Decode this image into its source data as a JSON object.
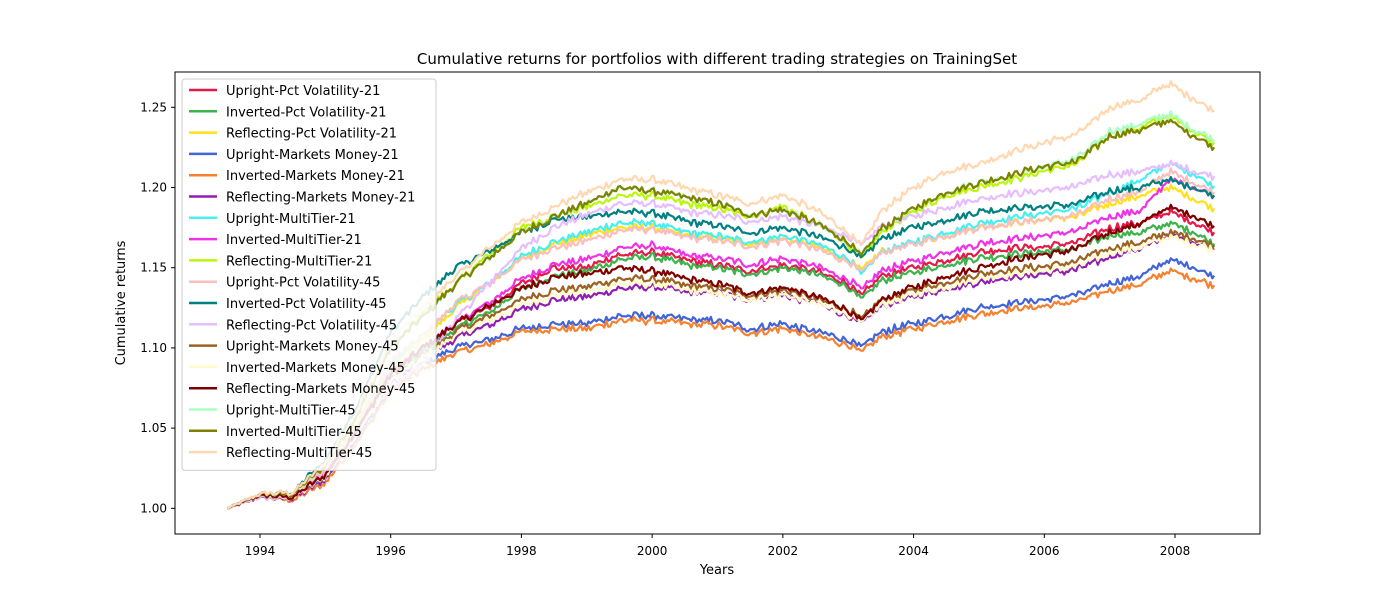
{
  "chart_data": {
    "type": "line",
    "title": "Cumulative returns for portfolios with different trading strategies on TrainingSet",
    "xlabel": "Years",
    "ylabel": "Cumulative returns",
    "xlim": [
      1992.7,
      2009.3
    ],
    "ylim": [
      0.984,
      1.272
    ],
    "xticks": [
      1994,
      1996,
      1998,
      2000,
      2002,
      2004,
      2006,
      2008
    ],
    "xtick_labels": [
      "1994",
      "1996",
      "1998",
      "2000",
      "2002",
      "2004",
      "2006",
      "2008"
    ],
    "yticks": [
      1.0,
      1.05,
      1.1,
      1.15,
      1.2,
      1.25
    ],
    "ytick_labels": [
      "1.00",
      "1.05",
      "1.10",
      "1.15",
      "1.20",
      "1.25"
    ],
    "grid": false,
    "legend_position": "upper-left",
    "x": [
      1993.5,
      1994.0,
      1994.5,
      1995.0,
      1995.5,
      1996.0,
      1996.5,
      1997.0,
      1997.5,
      1998.0,
      1998.5,
      1999.0,
      1999.5,
      2000.0,
      2000.5,
      2001.0,
      2001.5,
      2002.0,
      2002.5,
      2003.0,
      2003.2,
      2003.5,
      2004.0,
      2004.5,
      2005.0,
      2005.5,
      2006.0,
      2006.5,
      2007.0,
      2007.5,
      2007.9,
      2008.3,
      2008.6
    ],
    "series": [
      {
        "name": "Upright-Pct Volatility-21",
        "color": "#e6194b",
        "values": [
          1.0,
          1.008,
          1.008,
          1.022,
          1.05,
          1.085,
          1.1,
          1.115,
          1.125,
          1.14,
          1.15,
          1.15,
          1.158,
          1.16,
          1.155,
          1.152,
          1.148,
          1.152,
          1.148,
          1.14,
          1.132,
          1.145,
          1.15,
          1.155,
          1.16,
          1.162,
          1.163,
          1.166,
          1.175,
          1.178,
          1.185,
          1.178,
          1.172
        ]
      },
      {
        "name": "Inverted-Pct Volatility-21",
        "color": "#3cb44b",
        "values": [
          1.0,
          1.008,
          1.008,
          1.022,
          1.05,
          1.083,
          1.097,
          1.112,
          1.122,
          1.137,
          1.145,
          1.148,
          1.155,
          1.157,
          1.152,
          1.15,
          1.146,
          1.15,
          1.146,
          1.138,
          1.13,
          1.142,
          1.147,
          1.152,
          1.156,
          1.158,
          1.16,
          1.162,
          1.17,
          1.172,
          1.178,
          1.172,
          1.165
        ]
      },
      {
        "name": "Reflecting-Pct Volatility-21",
        "color": "#ffe119",
        "values": [
          1.0,
          1.008,
          1.008,
          1.023,
          1.052,
          1.088,
          1.105,
          1.125,
          1.14,
          1.155,
          1.165,
          1.17,
          1.175,
          1.175,
          1.17,
          1.168,
          1.165,
          1.168,
          1.163,
          1.155,
          1.148,
          1.16,
          1.165,
          1.17,
          1.175,
          1.178,
          1.18,
          1.182,
          1.19,
          1.195,
          1.2,
          1.193,
          1.187
        ]
      },
      {
        "name": "Upright-Markets Money-21",
        "color": "#4363d8",
        "values": [
          1.0,
          1.007,
          1.005,
          1.018,
          1.045,
          1.075,
          1.09,
          1.1,
          1.105,
          1.112,
          1.115,
          1.115,
          1.12,
          1.12,
          1.118,
          1.117,
          1.112,
          1.115,
          1.11,
          1.105,
          1.1,
          1.11,
          1.115,
          1.12,
          1.125,
          1.128,
          1.13,
          1.133,
          1.14,
          1.145,
          1.155,
          1.15,
          1.145
        ]
      },
      {
        "name": "Inverted-Markets Money-21",
        "color": "#f58231",
        "values": [
          1.0,
          1.007,
          1.005,
          1.016,
          1.042,
          1.073,
          1.087,
          1.097,
          1.102,
          1.11,
          1.112,
          1.112,
          1.117,
          1.117,
          1.115,
          1.114,
          1.109,
          1.112,
          1.107,
          1.102,
          1.097,
          1.107,
          1.112,
          1.117,
          1.121,
          1.124,
          1.126,
          1.129,
          1.136,
          1.14,
          1.148,
          1.143,
          1.139
        ]
      },
      {
        "name": "Reflecting-Markets Money-21",
        "color": "#911eb4",
        "values": [
          1.0,
          1.008,
          1.006,
          1.019,
          1.047,
          1.078,
          1.094,
          1.106,
          1.114,
          1.124,
          1.13,
          1.132,
          1.137,
          1.138,
          1.135,
          1.134,
          1.13,
          1.133,
          1.128,
          1.12,
          1.115,
          1.126,
          1.132,
          1.137,
          1.141,
          1.144,
          1.146,
          1.149,
          1.157,
          1.162,
          1.17,
          1.166,
          1.162
        ]
      },
      {
        "name": "Upright-MultiTier-21",
        "color": "#46f0f0",
        "values": [
          1.0,
          1.008,
          1.008,
          1.024,
          1.054,
          1.09,
          1.108,
          1.127,
          1.14,
          1.157,
          1.166,
          1.172,
          1.178,
          1.178,
          1.172,
          1.17,
          1.166,
          1.17,
          1.165,
          1.156,
          1.145,
          1.16,
          1.166,
          1.172,
          1.178,
          1.181,
          1.184,
          1.187,
          1.197,
          1.205,
          1.215,
          1.208,
          1.201
        ]
      },
      {
        "name": "Inverted-MultiTier-21",
        "color": "#f032e6",
        "values": [
          1.0,
          1.008,
          1.008,
          1.022,
          1.05,
          1.084,
          1.1,
          1.116,
          1.128,
          1.143,
          1.152,
          1.155,
          1.162,
          1.164,
          1.158,
          1.156,
          1.152,
          1.156,
          1.151,
          1.143,
          1.136,
          1.148,
          1.154,
          1.16,
          1.165,
          1.168,
          1.17,
          1.173,
          1.182,
          1.186,
          1.205,
          1.2,
          1.195
        ]
      },
      {
        "name": "Reflecting-MultiTier-21",
        "color": "#bcf60c",
        "values": [
          1.0,
          1.008,
          1.009,
          1.026,
          1.058,
          1.1,
          1.122,
          1.14,
          1.158,
          1.175,
          1.182,
          1.188,
          1.195,
          1.195,
          1.19,
          1.187,
          1.182,
          1.188,
          1.178,
          1.165,
          1.155,
          1.172,
          1.185,
          1.195,
          1.2,
          1.205,
          1.21,
          1.215,
          1.232,
          1.238,
          1.245,
          1.235,
          1.228
        ]
      },
      {
        "name": "Upright-Pct Volatility-45",
        "color": "#fabebe",
        "values": [
          1.0,
          1.008,
          1.008,
          1.024,
          1.054,
          1.092,
          1.108,
          1.128,
          1.14,
          1.155,
          1.162,
          1.167,
          1.173,
          1.174,
          1.169,
          1.167,
          1.163,
          1.167,
          1.162,
          1.154,
          1.147,
          1.159,
          1.165,
          1.17,
          1.175,
          1.178,
          1.18,
          1.183,
          1.193,
          1.198,
          1.21,
          1.203,
          1.197
        ]
      },
      {
        "name": "Inverted-Pct Volatility-45",
        "color": "#008080",
        "values": [
          1.0,
          1.009,
          1.01,
          1.03,
          1.065,
          1.11,
          1.132,
          1.15,
          1.16,
          1.172,
          1.18,
          1.182,
          1.185,
          1.184,
          1.179,
          1.176,
          1.172,
          1.175,
          1.17,
          1.162,
          1.155,
          1.168,
          1.175,
          1.18,
          1.185,
          1.187,
          1.188,
          1.19,
          1.198,
          1.2,
          1.205,
          1.2,
          1.195
        ]
      },
      {
        "name": "Reflecting-Pct Volatility-45",
        "color": "#e6beff",
        "values": [
          1.0,
          1.007,
          1.006,
          1.02,
          1.05,
          1.075,
          1.09,
          1.118,
          1.14,
          1.162,
          1.175,
          1.183,
          1.19,
          1.19,
          1.185,
          1.183,
          1.179,
          1.182,
          1.177,
          1.17,
          1.163,
          1.176,
          1.182,
          1.188,
          1.193,
          1.196,
          1.198,
          1.201,
          1.208,
          1.21,
          1.215,
          1.21,
          1.207
        ]
      },
      {
        "name": "Upright-Markets Money-45",
        "color": "#9a6324",
        "values": [
          1.0,
          1.008,
          1.007,
          1.02,
          1.048,
          1.08,
          1.095,
          1.11,
          1.12,
          1.13,
          1.136,
          1.138,
          1.143,
          1.143,
          1.139,
          1.137,
          1.133,
          1.136,
          1.131,
          1.124,
          1.118,
          1.13,
          1.136,
          1.141,
          1.146,
          1.149,
          1.151,
          1.154,
          1.162,
          1.166,
          1.172,
          1.168,
          1.164
        ]
      },
      {
        "name": "Inverted-Markets Money-45",
        "color": "#fffac8",
        "values": [
          1.0,
          1.008,
          1.007,
          1.02,
          1.047,
          1.079,
          1.094,
          1.108,
          1.117,
          1.127,
          1.133,
          1.135,
          1.14,
          1.14,
          1.136,
          1.134,
          1.13,
          1.133,
          1.128,
          1.121,
          1.115,
          1.127,
          1.133,
          1.138,
          1.143,
          1.146,
          1.148,
          1.151,
          1.159,
          1.163,
          1.169,
          1.165,
          1.161
        ]
      },
      {
        "name": "Reflecting-Markets Money-45",
        "color": "#800000",
        "values": [
          1.0,
          1.008,
          1.007,
          1.021,
          1.05,
          1.083,
          1.1,
          1.115,
          1.126,
          1.137,
          1.144,
          1.146,
          1.15,
          1.148,
          1.143,
          1.14,
          1.134,
          1.138,
          1.132,
          1.124,
          1.116,
          1.13,
          1.138,
          1.145,
          1.15,
          1.155,
          1.158,
          1.162,
          1.172,
          1.178,
          1.188,
          1.182,
          1.176
        ]
      },
      {
        "name": "Upright-MultiTier-45",
        "color": "#aaffc3",
        "values": [
          1.0,
          1.009,
          1.009,
          1.027,
          1.06,
          1.1,
          1.12,
          1.14,
          1.156,
          1.172,
          1.182,
          1.19,
          1.2,
          1.198,
          1.194,
          1.19,
          1.183,
          1.186,
          1.178,
          1.166,
          1.157,
          1.174,
          1.187,
          1.197,
          1.203,
          1.208,
          1.213,
          1.218,
          1.235,
          1.24,
          1.246,
          1.236,
          1.23
        ]
      },
      {
        "name": "Inverted-MultiTier-45",
        "color": "#808000",
        "values": [
          1.0,
          1.009,
          1.009,
          1.027,
          1.06,
          1.1,
          1.12,
          1.14,
          1.156,
          1.172,
          1.182,
          1.19,
          1.2,
          1.198,
          1.194,
          1.19,
          1.183,
          1.186,
          1.178,
          1.166,
          1.157,
          1.174,
          1.187,
          1.197,
          1.203,
          1.208,
          1.213,
          1.216,
          1.232,
          1.236,
          1.242,
          1.232,
          1.225
        ]
      },
      {
        "name": "Reflecting-MultiTier-45",
        "color": "#ffd8b1",
        "values": [
          1.0,
          1.009,
          1.01,
          1.028,
          1.062,
          1.105,
          1.125,
          1.145,
          1.162,
          1.178,
          1.188,
          1.197,
          1.205,
          1.205,
          1.2,
          1.195,
          1.19,
          1.195,
          1.186,
          1.172,
          1.163,
          1.185,
          1.2,
          1.21,
          1.215,
          1.222,
          1.228,
          1.233,
          1.25,
          1.255,
          1.265,
          1.255,
          1.248
        ]
      }
    ]
  }
}
